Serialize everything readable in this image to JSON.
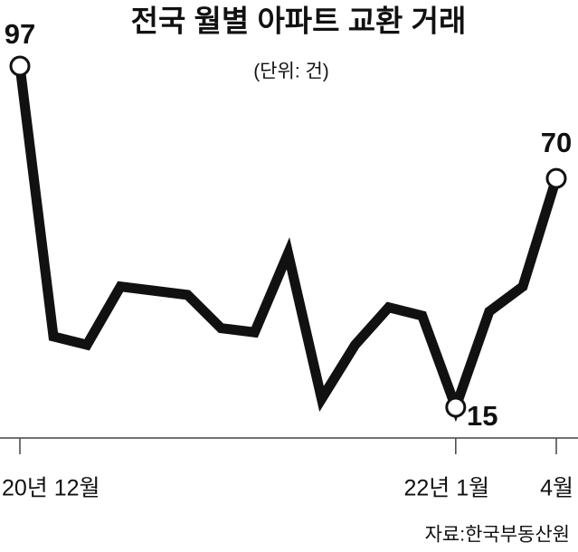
{
  "chart_data": {
    "type": "line",
    "title": "전국 월별 아파트 교환 거래",
    "subtitle": "(단위: 건)",
    "source": "자료:한국부동산원",
    "categories": [
      "20년 12월",
      null,
      null,
      null,
      null,
      null,
      null,
      null,
      null,
      null,
      null,
      null,
      null,
      "22년 1월",
      null,
      null,
      "4월"
    ],
    "values": [
      97,
      32,
      30,
      44,
      43,
      42,
      34,
      33,
      52,
      17,
      30,
      39,
      37,
      15,
      38,
      44,
      70
    ],
    "color": "#111111"
  }
}
